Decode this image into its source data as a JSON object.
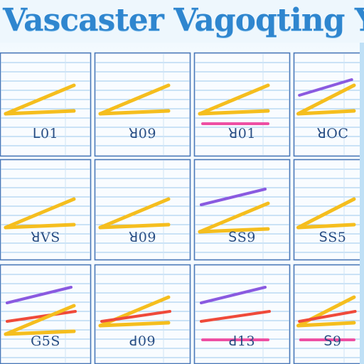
{
  "title": "Vascaster Vagoqting Yacc",
  "colors": {
    "background": "#f4fafe",
    "title_blue": "#2f86cf",
    "grid_line": "#9cc8ec",
    "panel_border": "#4a78b8",
    "label_text": "#284d83",
    "stroke_yellow": "#f5be1e",
    "stroke_purple": "#8a5ae0",
    "stroke_red": "#ef4a3a",
    "stroke_pink": "#ee4fa3"
  },
  "panels": [
    {
      "label": "ꓡ01",
      "strokes": [
        "yellow"
      ]
    },
    {
      "label": "ꓤ09",
      "strokes": [
        "yellow"
      ]
    },
    {
      "label": "ꓤ01",
      "strokes": [
        "yellow",
        "pink"
      ]
    },
    {
      "label": "ꓤOC",
      "strokes": [
        "yellow",
        "purple"
      ]
    },
    {
      "label": "ꓤVS",
      "strokes": [
        "yellow"
      ]
    },
    {
      "label": "ꓤ09",
      "strokes": [
        "yellow"
      ]
    },
    {
      "label": "ꓢS9",
      "strokes": [
        "purple",
        "yellow"
      ]
    },
    {
      "label": "ꓢS5",
      "strokes": [
        "yellow"
      ]
    },
    {
      "label": "G5S",
      "strokes": [
        "purple",
        "red",
        "yellow"
      ]
    },
    {
      "label": "ꓒ09",
      "strokes": [
        "yellow",
        "red"
      ]
    },
    {
      "label": "ꓒ13",
      "strokes": [
        "purple",
        "red",
        "pink"
      ]
    },
    {
      "label": "ꓢ9",
      "strokes": [
        "yellow",
        "red",
        "pink"
      ]
    }
  ]
}
